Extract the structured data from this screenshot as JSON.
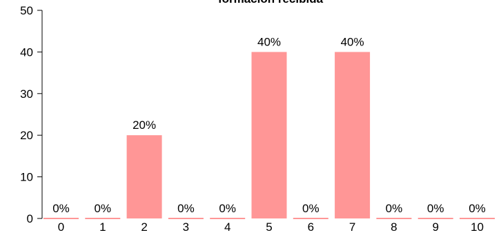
{
  "chart_data": {
    "type": "bar",
    "title": "formación recibida",
    "categories": [
      "0",
      "1",
      "2",
      "3",
      "4",
      "5",
      "6",
      "7",
      "8",
      "9",
      "10"
    ],
    "values": [
      0,
      0,
      20,
      0,
      0,
      40,
      0,
      40,
      0,
      0,
      0
    ],
    "data_labels": [
      "0%",
      "0%",
      "20%",
      "0%",
      "0%",
      "40%",
      "0%",
      "40%",
      "0%",
      "0%",
      "0%"
    ],
    "yticks": [
      "0",
      "10",
      "20",
      "30",
      "40",
      "50"
    ],
    "ylim": [
      0,
      50
    ],
    "xlabel": "",
    "ylabel": "",
    "grid": false,
    "bar_color": "#ff9696"
  }
}
